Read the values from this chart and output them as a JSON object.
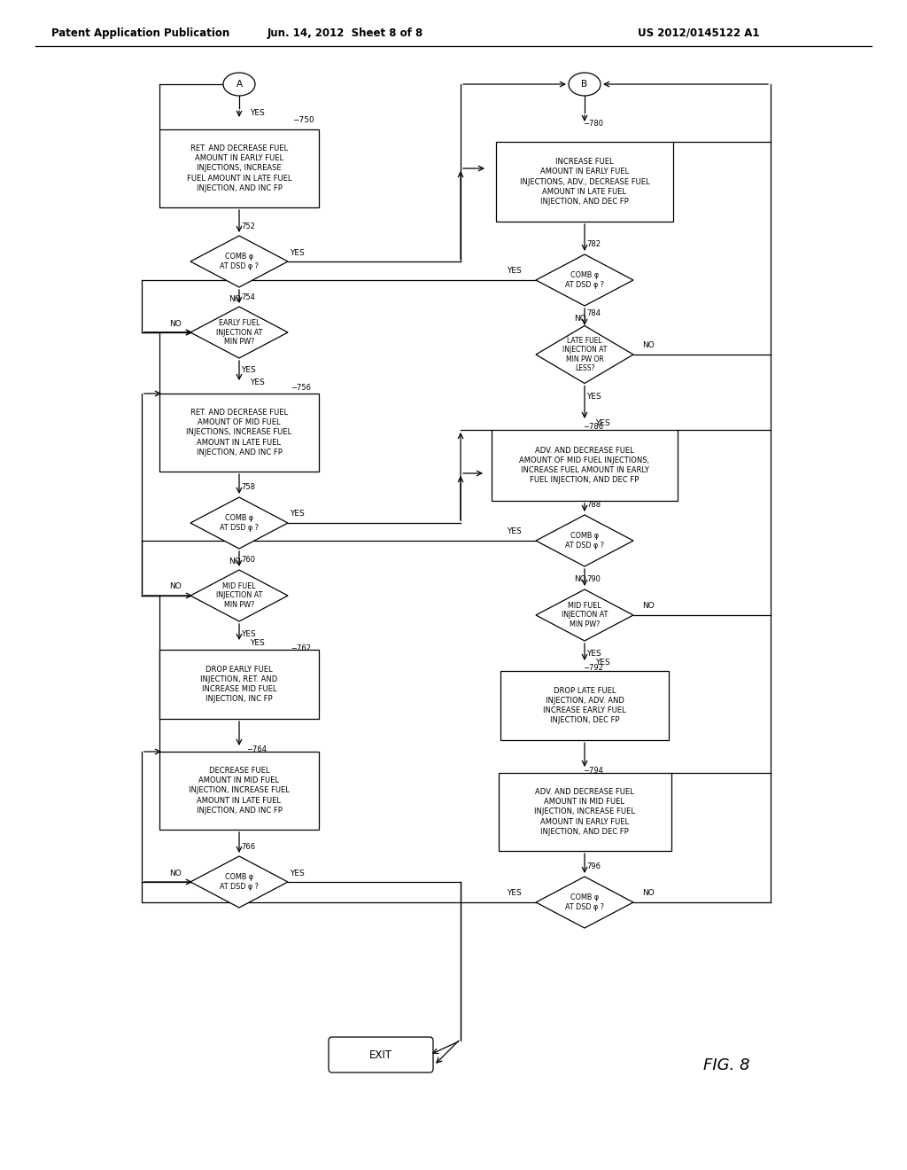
{
  "header_left": "Patent Application Publication",
  "header_mid": "Jun. 14, 2012  Sheet 8 of 8",
  "header_right": "US 2012/0145122 A1",
  "fig_label": "FIG. 8",
  "background_color": "#ffffff"
}
